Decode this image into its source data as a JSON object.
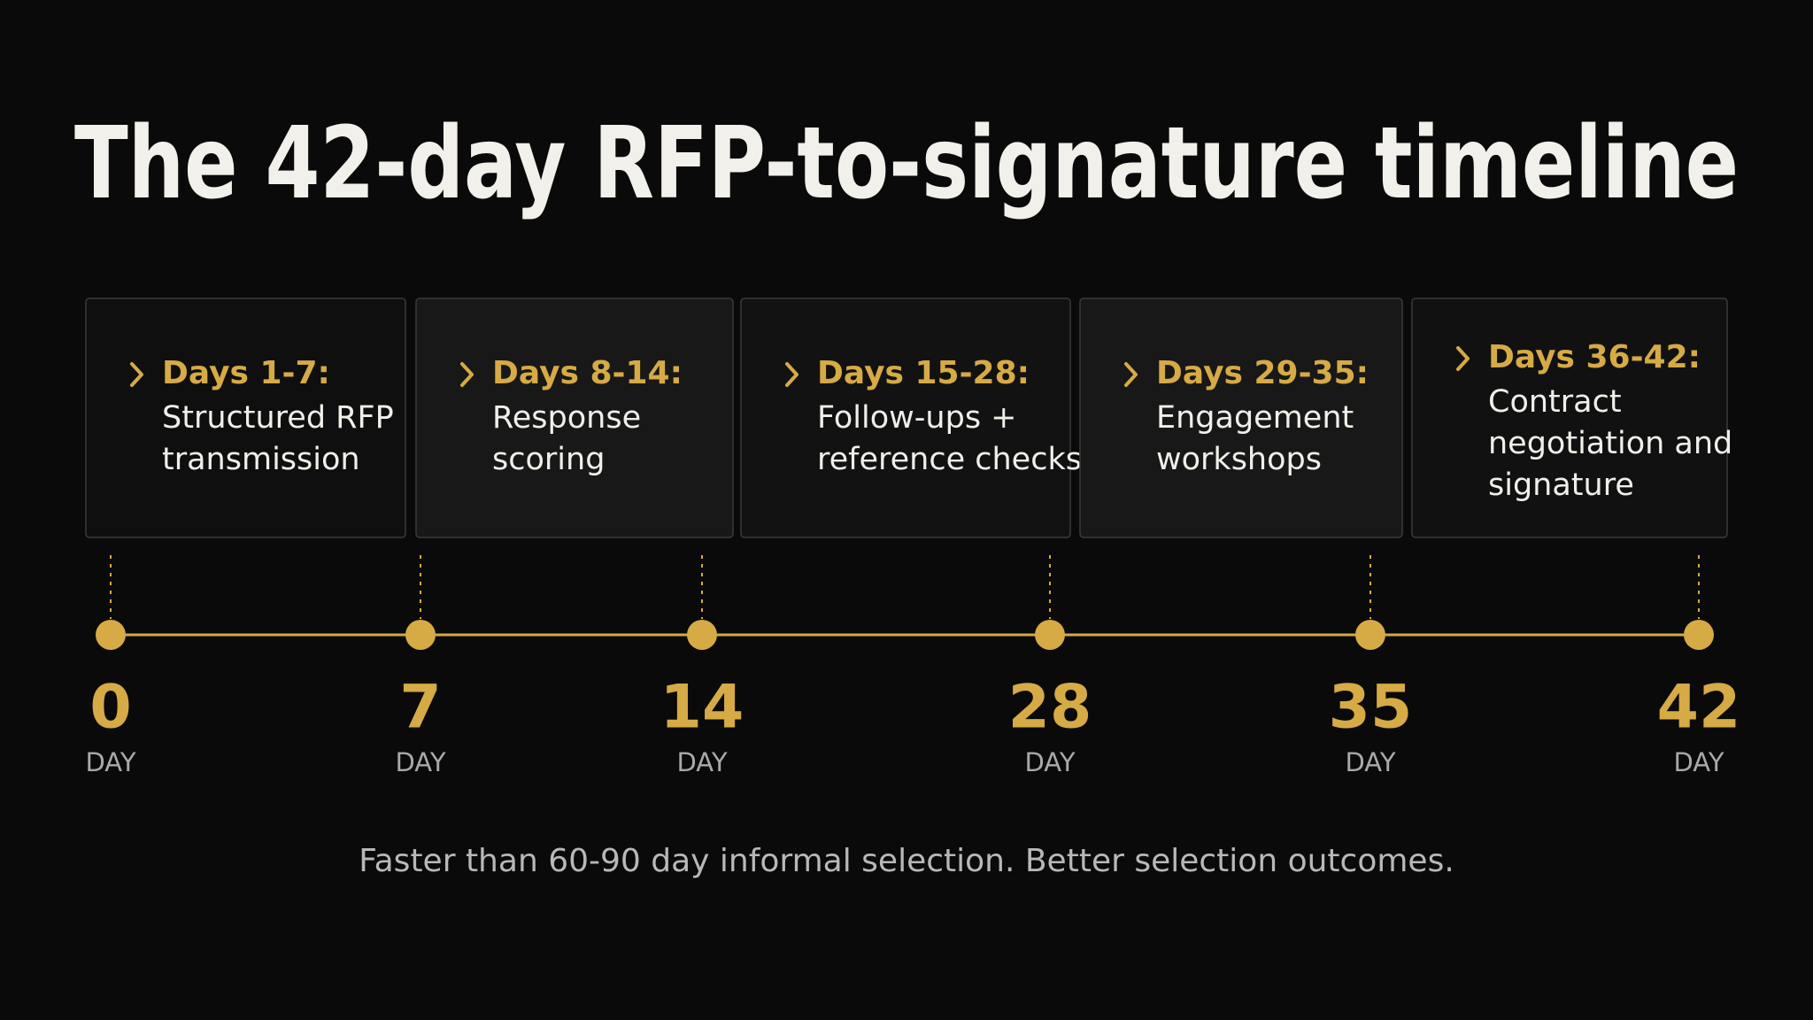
{
  "title": "The 42-day RFP-to-signature timeline",
  "phases": [
    {
      "label": "Days 1-7:",
      "lines": [
        "Structured RFP",
        "transmission"
      ]
    },
    {
      "label": "Days 8-14:",
      "lines": [
        "Response",
        "scoring"
      ]
    },
    {
      "label": "Days 15-28:",
      "lines": [
        "Follow-ups +",
        "reference checks"
      ]
    },
    {
      "label": "Days 29-35:",
      "lines": [
        "Engagement",
        "workshops"
      ]
    },
    {
      "label": "Days 36-42:",
      "lines": [
        "Contract",
        "negotiation and",
        "signature"
      ]
    }
  ],
  "milestones": [
    {
      "number": "0",
      "unit": "DAY"
    },
    {
      "number": "7",
      "unit": "DAY"
    },
    {
      "number": "14",
      "unit": "DAY"
    },
    {
      "number": "28",
      "unit": "DAY"
    },
    {
      "number": "35",
      "unit": "DAY"
    },
    {
      "number": "42",
      "unit": "DAY"
    }
  ],
  "footer": "Faster than 60-90 day informal selection. Better selection outcomes."
}
